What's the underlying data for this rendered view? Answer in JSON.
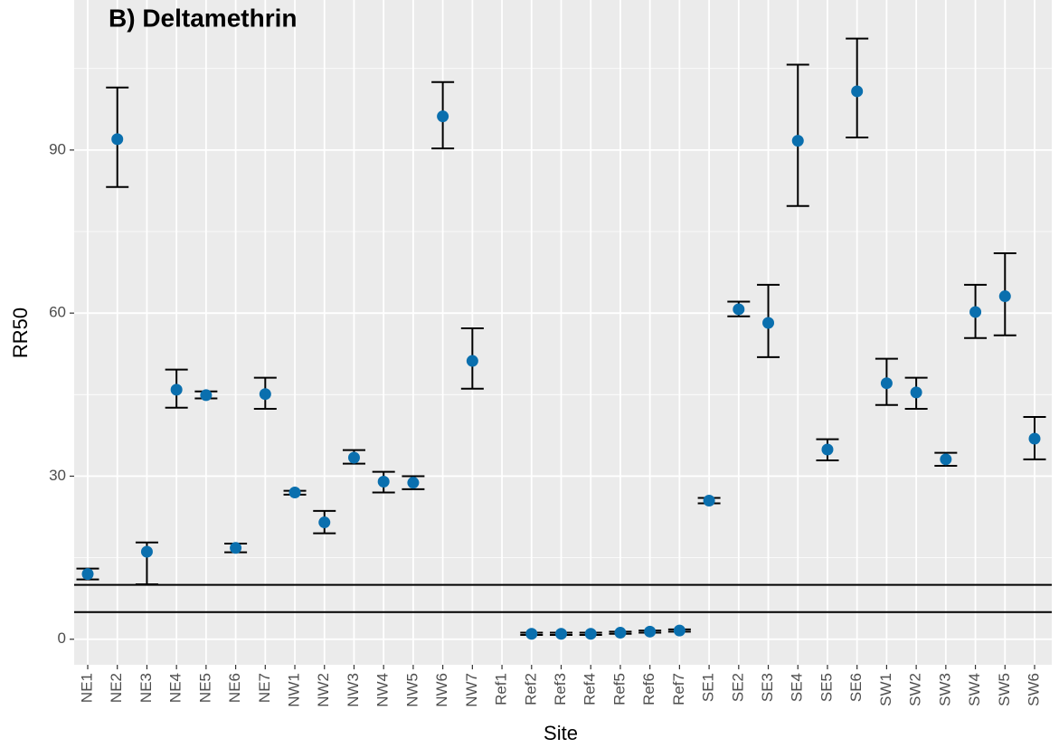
{
  "chart_data": {
    "type": "errorpoint",
    "title": "B) Deltamethrin",
    "x_label": "Site",
    "y_label": "RR50",
    "categories": [
      "NE1",
      "NE2",
      "NE3",
      "NE4",
      "NE5",
      "NE6",
      "NE7",
      "NW1",
      "NW2",
      "NW3",
      "NW4",
      "NW5",
      "NW6",
      "NW7",
      "Ref1",
      "Ref2",
      "Ref3",
      "Ref4",
      "Ref5",
      "Ref6",
      "Ref7",
      "SE1",
      "SE2",
      "SE3",
      "SE4",
      "SE5",
      "SE6",
      "SW1",
      "SW2",
      "SW3",
      "SW4",
      "SW5",
      "SW6"
    ],
    "values": [
      12,
      92,
      16.1,
      45.9,
      44.9,
      16.8,
      45.1,
      27,
      21.5,
      33.4,
      29,
      28.8,
      96.2,
      51.2,
      null,
      1,
      1,
      1,
      1.2,
      1.4,
      1.6,
      25.5,
      60.7,
      58.2,
      91.7,
      34.9,
      100.8,
      47.1,
      45.4,
      33.1,
      60.2,
      63.1,
      36.9
    ],
    "lower": [
      11,
      83.2,
      10.1,
      42.6,
      44.3,
      16,
      42.4,
      26.6,
      19.5,
      32.3,
      27,
      27.6,
      90.3,
      46.1,
      null,
      0.8,
      0.8,
      0.8,
      1,
      1.2,
      1.4,
      25,
      59.4,
      51.9,
      79.7,
      32.9,
      92.3,
      43.1,
      42.4,
      31.9,
      55.4,
      55.9,
      33.1
    ],
    "upper": [
      13,
      101.5,
      17.8,
      49.6,
      45.6,
      17.6,
      48.1,
      27.3,
      23.6,
      34.8,
      30.8,
      30,
      102.5,
      57.2,
      null,
      1.2,
      1.2,
      1.2,
      1.4,
      1.6,
      1.8,
      26,
      62.1,
      65.2,
      105.7,
      36.8,
      110.5,
      51.6,
      48.1,
      34.3,
      65.2,
      71,
      40.9
    ],
    "color": "#0a6fae",
    "reference_lines": [
      10,
      5
    ],
    "ylim": [
      -4.7,
      117.6
    ],
    "yticks": [
      0,
      30,
      60,
      90
    ],
    "grid": true
  }
}
